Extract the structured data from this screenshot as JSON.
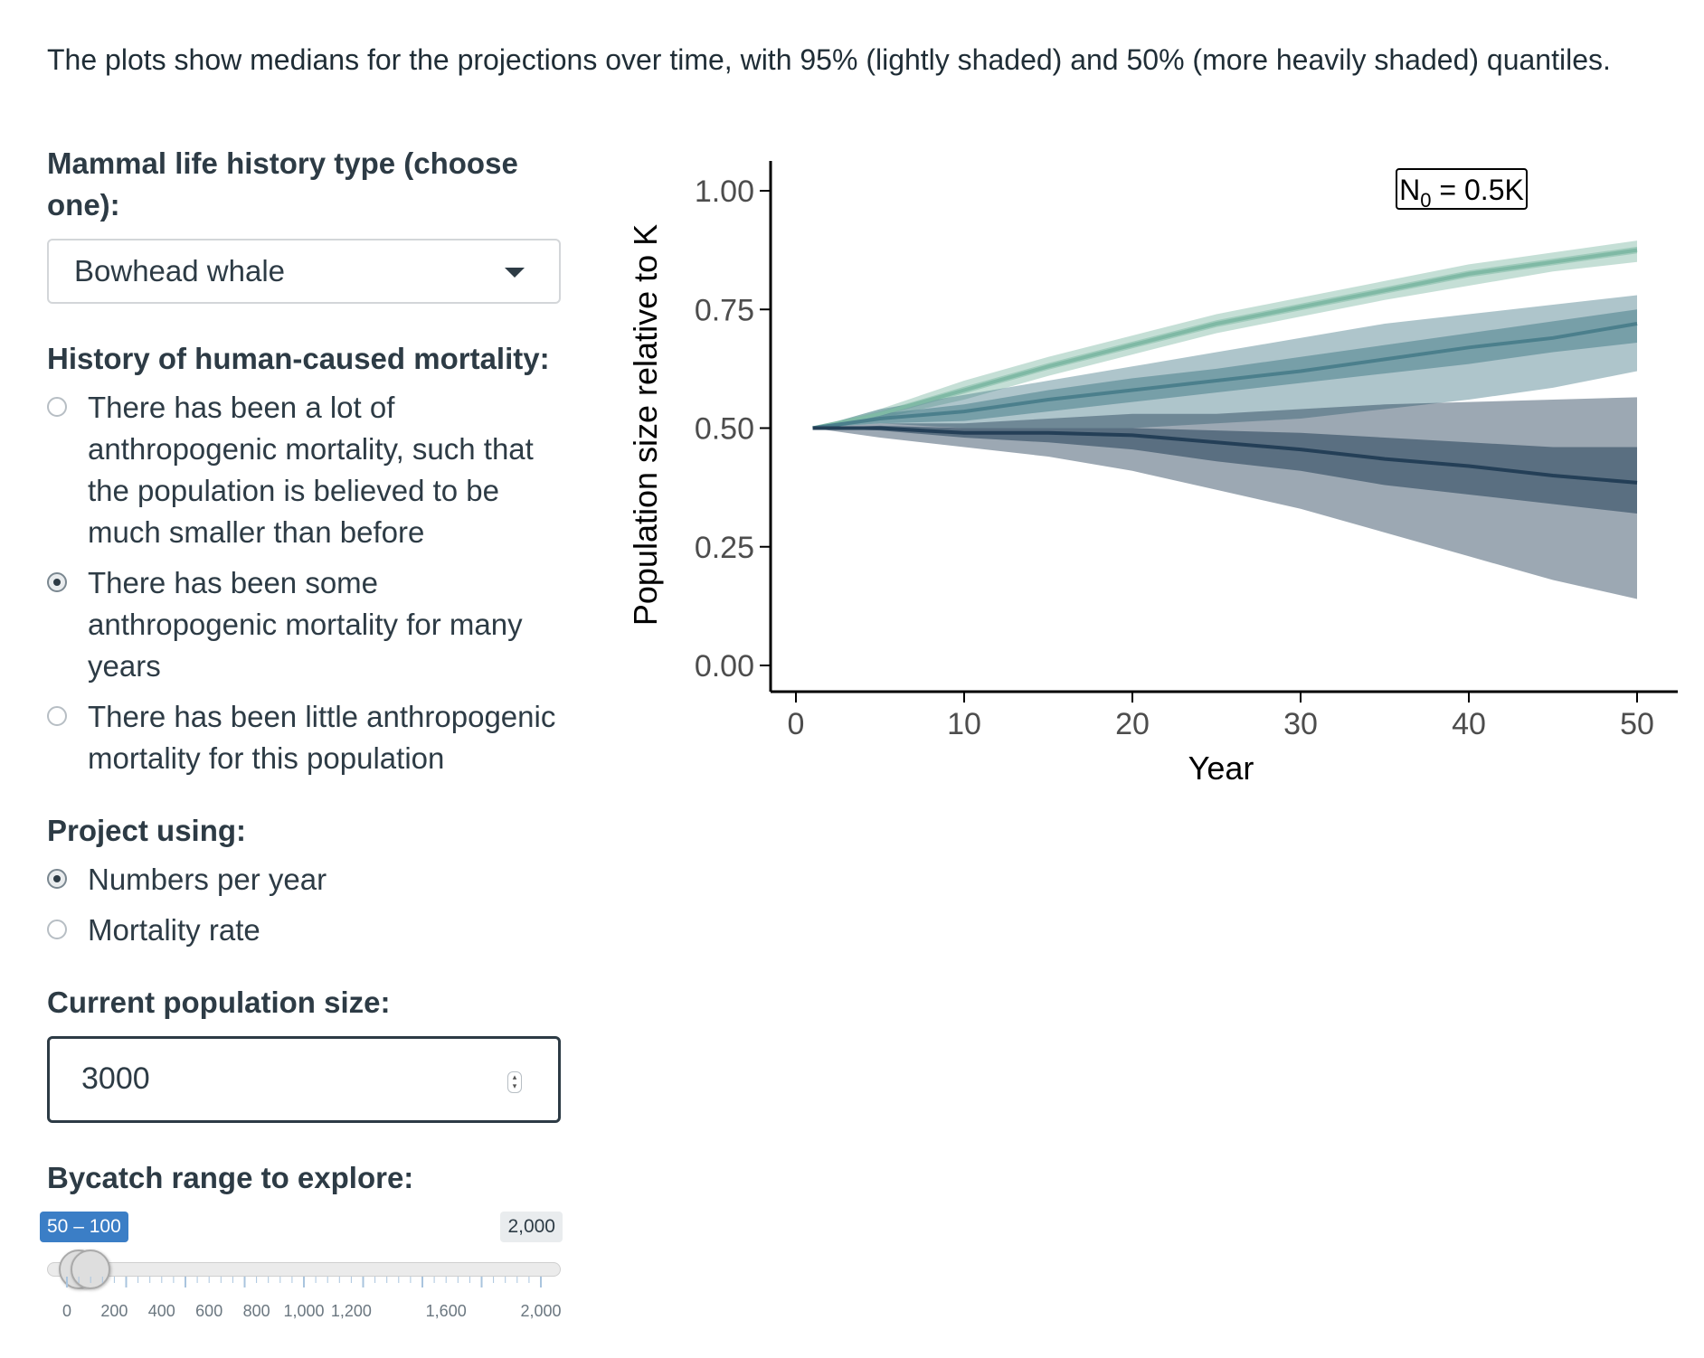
{
  "intro_text": "The plots show medians for the projections over time, with 95% (lightly shaded) and 50% (more heavily shaded) quantiles.",
  "sidebar": {
    "life_history": {
      "label": "Mammal life history type (choose one):",
      "selected": "Bowhead whale"
    },
    "mortality_history": {
      "label": "History of human-caused mortality:",
      "options": [
        {
          "text": "There has been a lot of anthropogenic mortality, such that the population is believed to be much smaller than before",
          "selected": false
        },
        {
          "text": "There has been some anthropogenic mortality for many years",
          "selected": true
        },
        {
          "text": "There has been little anthropogenic mortality for this population",
          "selected": false
        }
      ]
    },
    "project_using": {
      "label": "Project using:",
      "options": [
        {
          "text": "Numbers per year",
          "selected": true
        },
        {
          "text": "Mortality rate",
          "selected": false
        }
      ]
    },
    "population_size": {
      "label": "Current population size:",
      "value": "3000"
    },
    "bycatch": {
      "label": "Bycatch range to explore:",
      "range_text": "50 – 100",
      "max_text": "2,000",
      "min": 0,
      "max": 2000,
      "low": 50,
      "high": 100,
      "tick_labels": [
        "0",
        "200",
        "400",
        "600",
        "800",
        "1,000",
        "1,200",
        "1,600",
        "2,000"
      ]
    }
  },
  "chart_data": {
    "type": "area",
    "ylabel": "Population size relative to K",
    "xlabel": "Year",
    "annotation_prefix": "N",
    "annotation_sub": "0",
    "annotation_suffix": " = 0.5K",
    "xlim": [
      0,
      50
    ],
    "ylim": [
      0,
      1
    ],
    "x_ticks": [
      "0",
      "10",
      "20",
      "30",
      "40",
      "50"
    ],
    "y_ticks": [
      "0.00",
      "0.25",
      "0.50",
      "0.75",
      "1.00"
    ],
    "x": [
      1,
      5,
      10,
      15,
      20,
      25,
      30,
      35,
      40,
      45,
      50
    ],
    "series": [
      {
        "color": "#7fb9a5",
        "median": [
          0.5,
          0.53,
          0.58,
          0.63,
          0.675,
          0.72,
          0.755,
          0.79,
          0.825,
          0.85,
          0.875
        ],
        "q95": {
          "lo": [
            0.5,
            0.52,
            0.56,
            0.61,
            0.655,
            0.7,
            0.735,
            0.77,
            0.8,
            0.83,
            0.85
          ],
          "hi": [
            0.5,
            0.54,
            0.6,
            0.65,
            0.695,
            0.74,
            0.775,
            0.81,
            0.845,
            0.87,
            0.895
          ]
        },
        "q50": {
          "lo": [
            0.5,
            0.525,
            0.573,
            0.623,
            0.668,
            0.713,
            0.748,
            0.783,
            0.818,
            0.843,
            0.868
          ],
          "hi": [
            0.5,
            0.535,
            0.587,
            0.637,
            0.682,
            0.727,
            0.762,
            0.797,
            0.832,
            0.857,
            0.882
          ]
        }
      },
      {
        "color": "#4b7f8c",
        "median": [
          0.5,
          0.52,
          0.535,
          0.56,
          0.58,
          0.6,
          0.62,
          0.645,
          0.67,
          0.69,
          0.72
        ],
        "q95": {
          "lo": [
            0.5,
            0.51,
            0.5,
            0.5,
            0.5,
            0.51,
            0.52,
            0.54,
            0.56,
            0.585,
            0.62
          ],
          "hi": [
            0.5,
            0.54,
            0.57,
            0.6,
            0.63,
            0.66,
            0.69,
            0.72,
            0.74,
            0.76,
            0.78
          ]
        },
        "q50": {
          "lo": [
            0.5,
            0.51,
            0.515,
            0.535,
            0.555,
            0.575,
            0.595,
            0.615,
            0.635,
            0.66,
            0.68
          ],
          "hi": [
            0.5,
            0.53,
            0.55,
            0.58,
            0.605,
            0.625,
            0.65,
            0.675,
            0.7,
            0.725,
            0.75
          ]
        }
      },
      {
        "color": "#243f57",
        "median": [
          0.5,
          0.5,
          0.49,
          0.49,
          0.485,
          0.47,
          0.455,
          0.435,
          0.42,
          0.4,
          0.385
        ],
        "q95": {
          "lo": [
            0.5,
            0.48,
            0.46,
            0.44,
            0.41,
            0.37,
            0.33,
            0.28,
            0.23,
            0.18,
            0.14
          ],
          "hi": [
            0.5,
            0.51,
            0.51,
            0.52,
            0.53,
            0.53,
            0.54,
            0.55,
            0.555,
            0.56,
            0.565
          ]
        },
        "q50": {
          "lo": [
            0.5,
            0.495,
            0.48,
            0.47,
            0.455,
            0.43,
            0.41,
            0.38,
            0.36,
            0.34,
            0.32
          ],
          "hi": [
            0.5,
            0.505,
            0.5,
            0.5,
            0.5,
            0.495,
            0.49,
            0.48,
            0.47,
            0.46,
            0.46
          ]
        }
      }
    ]
  }
}
